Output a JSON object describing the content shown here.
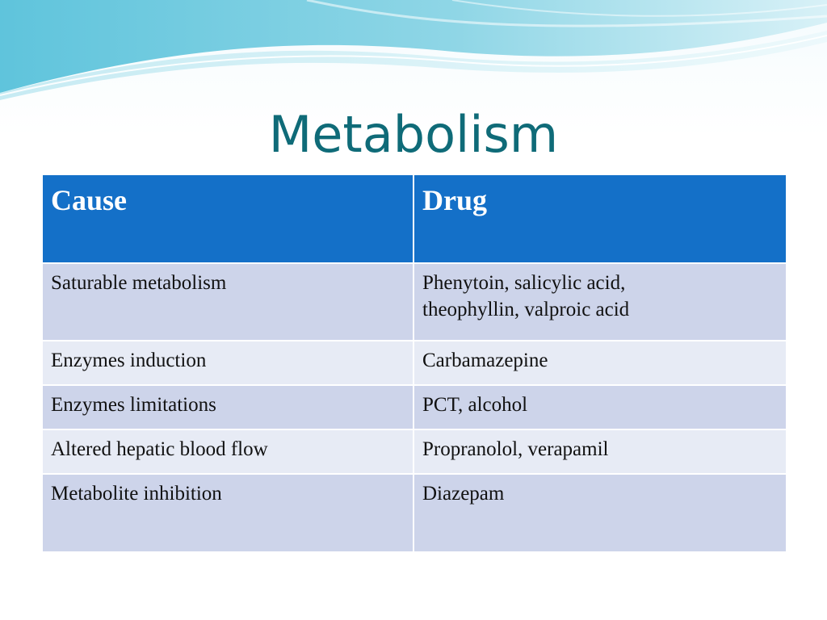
{
  "slide": {
    "title": "Metabolism",
    "colors": {
      "title": "#0f6b78",
      "header_bg": "#1470c8",
      "row_odd": "#cdd4ea",
      "row_even": "#e7ebf5",
      "wave": "#62c3da"
    }
  },
  "table": {
    "headers": [
      "Cause",
      "Drug"
    ],
    "rows": [
      {
        "cause": "Saturable metabolism",
        "drug_line1": "Phenytoin, salicylic acid,",
        "drug_line2": "theophyllin, valproic acid"
      },
      {
        "cause": "Enzymes induction",
        "drug_line1": "Carbamazepine"
      },
      {
        "cause": "Enzymes limitations",
        "drug_line1": "PCT, alcohol"
      },
      {
        "cause": "Altered hepatic blood flow",
        "drug_line1": "Propranolol, verapamil"
      },
      {
        "cause": "Metabolite inhibition",
        "drug_line1": "Diazepam"
      }
    ]
  }
}
